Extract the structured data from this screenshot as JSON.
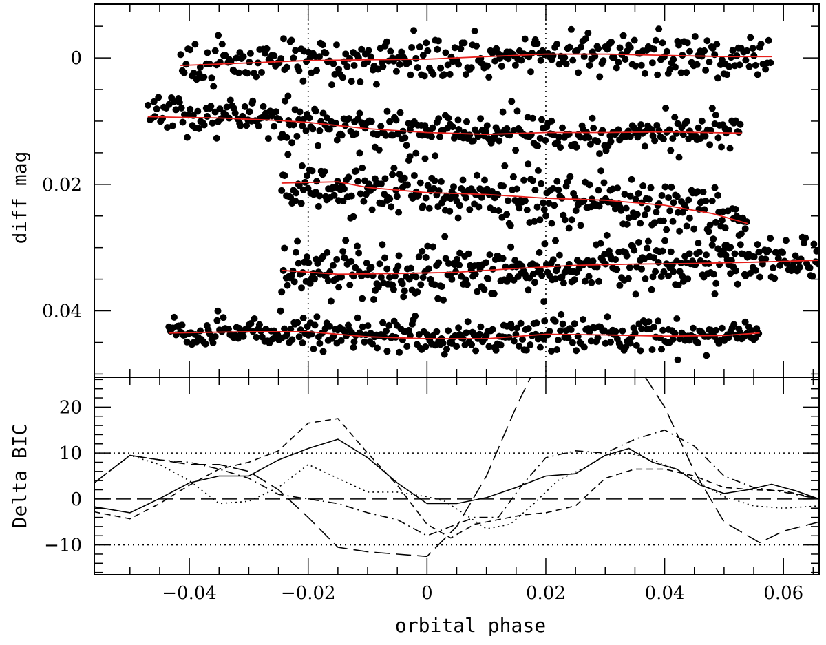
{
  "chart_data": [
    {
      "panel": "top",
      "type": "scatter",
      "xlabel": "",
      "ylabel": "diff mag",
      "xlim": [
        -0.056,
        0.066
      ],
      "ylim": [
        0.0505,
        -0.0085
      ],
      "y_inverted": true,
      "y_ticks": [
        0,
        0.02,
        0.04
      ],
      "y_tick_labels": [
        "0",
        "0.02",
        "0.04"
      ],
      "vlines": [
        -0.02,
        0.02
      ],
      "vline_style": "dotted",
      "series": [
        {
          "x_start": -0.0415,
          "x_end": 0.058,
          "model": [
            [
              -0.0415,
              0.0012
            ],
            [
              -0.03,
              0.0008
            ],
            [
              -0.02,
              0.0004
            ],
            [
              -0.01,
              0.0003
            ],
            [
              0.0,
              0.0002
            ],
            [
              0.01,
              -0.0002
            ],
            [
              0.02,
              -0.0006
            ],
            [
              0.03,
              -0.0006
            ],
            [
              0.04,
              -0.0004
            ],
            [
              0.05,
              -0.0002
            ],
            [
              0.058,
              -0.0002
            ]
          ],
          "scatter_sd": 0.0018,
          "n": 330,
          "seed": 11
        },
        {
          "x_start": -0.047,
          "x_end": 0.053,
          "model": [
            [
              -0.047,
              0.0093
            ],
            [
              -0.035,
              0.0095
            ],
            [
              -0.025,
              0.0099
            ],
            [
              -0.02,
              0.0102
            ],
            [
              -0.01,
              0.0112
            ],
            [
              0.0,
              0.0118
            ],
            [
              0.01,
              0.0121
            ],
            [
              0.02,
              0.0118
            ],
            [
              0.03,
              0.0118
            ],
            [
              0.04,
              0.0117
            ],
            [
              0.053,
              0.0119
            ]
          ],
          "scatter_sd": 0.0014,
          "n": 340,
          "seed": 23
        },
        {
          "x_start": -0.0245,
          "x_end": 0.054,
          "model": [
            [
              -0.0245,
              0.0198
            ],
            [
              -0.015,
              0.0196
            ],
            [
              -0.01,
              0.0205
            ],
            [
              0.0,
              0.0213
            ],
            [
              0.01,
              0.0216
            ],
            [
              0.02,
              0.0222
            ],
            [
              0.03,
              0.0225
            ],
            [
              0.04,
              0.0233
            ],
            [
              0.048,
              0.0246
            ],
            [
              0.054,
              0.0262
            ]
          ],
          "scatter_sd": 0.0022,
          "n": 320,
          "seed": 37
        },
        {
          "x_start": -0.0245,
          "x_end": 0.066,
          "model": [
            [
              -0.0245,
              0.0336
            ],
            [
              -0.015,
              0.0342
            ],
            [
              -0.005,
              0.0341
            ],
            [
              0.005,
              0.0339
            ],
            [
              0.015,
              0.0333
            ],
            [
              0.025,
              0.0328
            ],
            [
              0.035,
              0.0326
            ],
            [
              0.045,
              0.0325
            ],
            [
              0.055,
              0.0323
            ],
            [
              0.066,
              0.032
            ]
          ],
          "scatter_sd": 0.002,
          "n": 380,
          "seed": 53
        },
        {
          "x_start": -0.0435,
          "x_end": 0.056,
          "model": [
            [
              -0.0435,
              0.0435
            ],
            [
              -0.03,
              0.0433
            ],
            [
              -0.02,
              0.0433
            ],
            [
              -0.01,
              0.0441
            ],
            [
              0.0,
              0.0444
            ],
            [
              0.01,
              0.0444
            ],
            [
              0.02,
              0.0437
            ],
            [
              0.03,
              0.0438
            ],
            [
              0.04,
              0.044
            ],
            [
              0.05,
              0.0439
            ],
            [
              0.056,
              0.0435
            ]
          ],
          "scatter_sd": 0.0013,
          "n": 360,
          "seed": 71
        }
      ]
    },
    {
      "panel": "bottom",
      "type": "line",
      "xlabel": "orbital phase",
      "ylabel": "Delta BIC",
      "xlim": [
        -0.056,
        0.066
      ],
      "ylim": [
        -16.5,
        26.5
      ],
      "x_ticks": [
        -0.04,
        -0.02,
        0,
        0.02,
        0.04,
        0.06
      ],
      "x_tick_labels": [
        "−0.04",
        "−0.02",
        "0",
        "0.02",
        "0.04",
        "0.06"
      ],
      "y_ticks": [
        -10,
        0,
        10,
        20
      ],
      "y_tick_labels": [
        "−10",
        "0",
        "10",
        "20"
      ],
      "hlines": [
        {
          "y": 10,
          "style": "dotted"
        },
        {
          "y": -10,
          "style": "dotted"
        },
        {
          "y": 0,
          "style": "long-dash"
        }
      ],
      "series": [
        {
          "style": "solid",
          "points": [
            [
              -0.056,
              -1.7
            ],
            [
              -0.05,
              -3.0
            ],
            [
              -0.045,
              0.1
            ],
            [
              -0.04,
              3.5
            ],
            [
              -0.035,
              5.0
            ],
            [
              -0.03,
              5.0
            ],
            [
              -0.025,
              8.5
            ],
            [
              -0.02,
              11.0
            ],
            [
              -0.015,
              13.0
            ],
            [
              -0.01,
              9.0
            ],
            [
              -0.005,
              3.5
            ],
            [
              0.0,
              -1.0
            ],
            [
              0.005,
              -1.0
            ],
            [
              0.01,
              0.3
            ],
            [
              0.015,
              2.5
            ],
            [
              0.02,
              5.0
            ],
            [
              0.025,
              5.5
            ],
            [
              0.03,
              9.5
            ],
            [
              0.034,
              11.0
            ],
            [
              0.038,
              8.0
            ],
            [
              0.042,
              6.5
            ],
            [
              0.046,
              3.0
            ],
            [
              0.05,
              1.2
            ],
            [
              0.054,
              2.0
            ],
            [
              0.058,
              3.2
            ],
            [
              0.062,
              1.8
            ],
            [
              0.066,
              0.0
            ]
          ]
        },
        {
          "style": "short-dash",
          "points": [
            [
              -0.056,
              -2.8
            ],
            [
              -0.05,
              -4.3
            ],
            [
              -0.045,
              -1.0
            ],
            [
              -0.04,
              3.0
            ],
            [
              -0.035,
              6.5
            ],
            [
              -0.03,
              8.0
            ],
            [
              -0.025,
              10.5
            ],
            [
              -0.02,
              16.5
            ],
            [
              -0.015,
              17.5
            ],
            [
              -0.01,
              10.0
            ],
            [
              -0.005,
              3.0
            ],
            [
              0.0,
              -5.5
            ],
            [
              0.004,
              -8.5
            ],
            [
              0.008,
              -5.5
            ],
            [
              0.012,
              -4.5
            ],
            [
              0.016,
              -3.5
            ],
            [
              0.02,
              -3.0
            ],
            [
              0.025,
              -1.5
            ],
            [
              0.03,
              4.5
            ],
            [
              0.035,
              6.5
            ],
            [
              0.04,
              6.5
            ],
            [
              0.045,
              5.0
            ],
            [
              0.05,
              2.5
            ],
            [
              0.055,
              2.0
            ],
            [
              0.06,
              1.8
            ],
            [
              0.066,
              0.0
            ]
          ]
        },
        {
          "style": "dotted",
          "points": [
            [
              -0.056,
              3.5
            ],
            [
              -0.05,
              9.5
            ],
            [
              -0.045,
              7.5
            ],
            [
              -0.04,
              4.0
            ],
            [
              -0.035,
              -1.0
            ],
            [
              -0.03,
              -0.5
            ],
            [
              -0.025,
              2.5
            ],
            [
              -0.02,
              7.5
            ],
            [
              -0.015,
              4.5
            ],
            [
              -0.01,
              1.5
            ],
            [
              -0.005,
              1.5
            ],
            [
              0.0,
              0.5
            ],
            [
              0.003,
              -0.5
            ],
            [
              0.006,
              -3.0
            ],
            [
              0.01,
              -6.5
            ],
            [
              0.014,
              -5.5
            ],
            [
              0.018,
              -1.0
            ],
            [
              0.022,
              4.0
            ],
            [
              0.026,
              6.5
            ],
            [
              0.03,
              9.5
            ],
            [
              0.034,
              10.0
            ],
            [
              0.038,
              8.5
            ],
            [
              0.042,
              6.5
            ],
            [
              0.046,
              3.5
            ],
            [
              0.05,
              0.5
            ],
            [
              0.055,
              -1.5
            ],
            [
              0.06,
              -2.0
            ],
            [
              0.066,
              -1.5
            ]
          ]
        },
        {
          "style": "dash-dot",
          "points": [
            [
              -0.056,
              3.5
            ],
            [
              -0.05,
              9.5
            ],
            [
              -0.045,
              8.5
            ],
            [
              -0.04,
              8.0
            ],
            [
              -0.035,
              6.5
            ],
            [
              -0.03,
              4.5
            ],
            [
              -0.025,
              1.0
            ],
            [
              -0.02,
              0.0
            ],
            [
              -0.015,
              -1.0
            ],
            [
              -0.01,
              -3.0
            ],
            [
              -0.005,
              -4.5
            ],
            [
              0.0,
              -8.0
            ],
            [
              0.004,
              -6.0
            ],
            [
              0.008,
              -4.0
            ],
            [
              0.012,
              -4.0
            ],
            [
              0.016,
              3.0
            ],
            [
              0.02,
              9.0
            ],
            [
              0.025,
              10.5
            ],
            [
              0.03,
              10.0
            ],
            [
              0.035,
              13.0
            ],
            [
              0.04,
              15.0
            ],
            [
              0.045,
              11.5
            ],
            [
              0.05,
              5.0
            ],
            [
              0.055,
              2.5
            ],
            [
              0.06,
              1.5
            ],
            [
              0.066,
              0.0
            ]
          ]
        },
        {
          "style": "long-dash",
          "points": [
            [
              -0.056,
              3.5
            ],
            [
              -0.05,
              9.5
            ],
            [
              -0.045,
              8.5
            ],
            [
              -0.04,
              7.5
            ],
            [
              -0.035,
              7.5
            ],
            [
              -0.03,
              6.0
            ],
            [
              -0.025,
              2.0
            ],
            [
              -0.02,
              -4.0
            ],
            [
              -0.015,
              -10.5
            ],
            [
              -0.01,
              -11.5
            ],
            [
              -0.005,
              -12.0
            ],
            [
              0.0,
              -12.5
            ],
            [
              0.005,
              -6.0
            ],
            [
              0.01,
              5.0
            ],
            [
              0.015,
              20.0
            ],
            [
              0.018,
              28.0
            ],
            [
              0.036,
              28.0
            ],
            [
              0.04,
              20.0
            ],
            [
              0.045,
              6.0
            ],
            [
              0.05,
              -5.0
            ],
            [
              0.056,
              -9.5
            ],
            [
              0.06,
              -7.0
            ],
            [
              0.066,
              -5.0
            ]
          ]
        }
      ]
    }
  ]
}
